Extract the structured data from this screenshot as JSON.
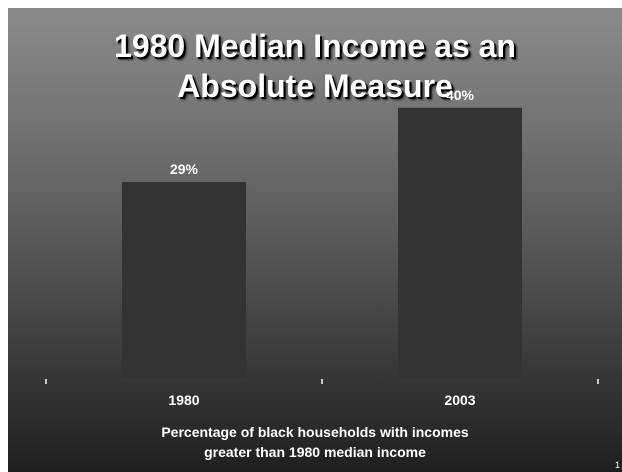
{
  "chart_data": {
    "type": "bar",
    "title_lines": [
      "1980 Median Income as an",
      "Absolute Measure"
    ],
    "categories": [
      "1980",
      "2003"
    ],
    "values": [
      29,
      40
    ],
    "value_labels": [
      "29%",
      "40%"
    ],
    "caption_lines": [
      "Percentage of black households with incomes",
      "greater than 1980 median income"
    ],
    "ylim": [
      0,
      45
    ],
    "grid": false,
    "bar_color": "#333333"
  },
  "page_number": "1"
}
